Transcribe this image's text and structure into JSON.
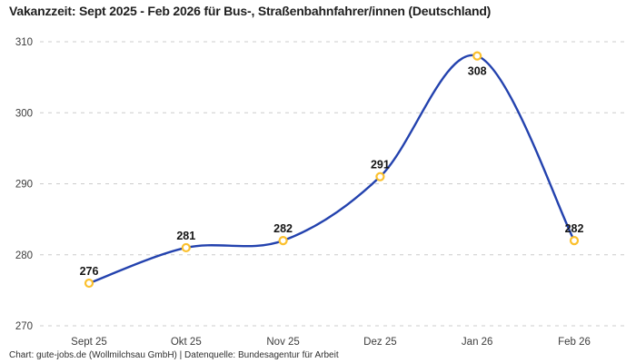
{
  "header": {
    "title": "Vakanzzeit: Sept 2025 - Feb 2026 für Bus-, Straßenbahnfahrer/innen (Deutschland)"
  },
  "footer": {
    "attribution": "Chart: gute-jobs.de (Wollmilchsau GmbH) | Datenquelle: Bundesagentur für Arbeit"
  },
  "chart_data": {
    "type": "line",
    "title": "Vakanzzeit: Sept 2025 - Feb 2026 für Bus-, Straßenbahnfahrer/innen (Deutschland)",
    "categories": [
      "Sept 25",
      "Okt 25",
      "Nov 25",
      "Dez 25",
      "Jan 26",
      "Feb 26"
    ],
    "series": [
      {
        "name": "Vakanzzeit",
        "values": [
          276,
          281,
          282,
          291,
          308,
          282
        ]
      }
    ],
    "data_labels": [
      "276",
      "281",
      "282",
      "291",
      "308",
      "282"
    ],
    "xlabel": "",
    "ylabel": "",
    "ylim": [
      270,
      310
    ],
    "yticks": [
      270,
      280,
      290,
      300,
      310
    ],
    "grid": "horizontal-dashed",
    "legend_position": "none",
    "line_style": "smooth",
    "marker_style": "open-circle",
    "colors": {
      "line": "#2342ae",
      "marker_stroke": "#fbc02d",
      "marker_fill": "#ffffff",
      "grid": "#cccccc",
      "tick_text": "#3d3d3d",
      "label_text": "#141414",
      "background": "#ffffff"
    }
  }
}
